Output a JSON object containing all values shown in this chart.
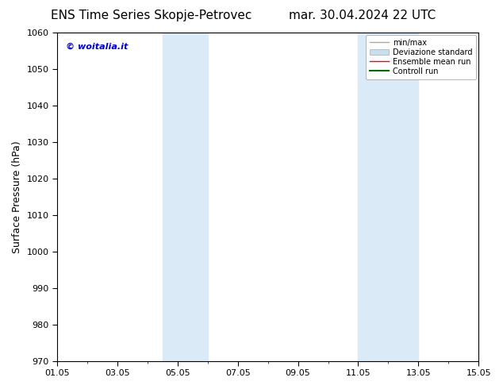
{
  "title_left": "ENS Time Series Skopje-Petrovec",
  "title_right": "mar. 30.04.2024 22 UTC",
  "ylabel": "Surface Pressure (hPa)",
  "ylim": [
    970,
    1060
  ],
  "yticks": [
    970,
    980,
    990,
    1000,
    1010,
    1020,
    1030,
    1040,
    1050,
    1060
  ],
  "xlim_start": 0,
  "xlim_end": 14,
  "xtick_labels": [
    "01.05",
    "03.05",
    "05.05",
    "07.05",
    "09.05",
    "11.05",
    "13.05",
    "15.05"
  ],
  "xtick_positions": [
    0,
    2,
    4,
    6,
    8,
    10,
    12,
    14
  ],
  "shaded_regions": [
    {
      "xmin": 3.5,
      "xmax": 5.0
    },
    {
      "xmin": 10.0,
      "xmax": 12.0
    }
  ],
  "shaded_color": "#daeaf7",
  "background_color": "#ffffff",
  "watermark_text": "© woitalia.it",
  "watermark_color": "#0000cc",
  "legend_items": [
    {
      "label": "min/max",
      "color": "#aaaaaa",
      "lw": 1.0
    },
    {
      "label": "Deviazione standard",
      "color": "#c8dff0",
      "lw": 6
    },
    {
      "label": "Ensemble mean run",
      "color": "#ff0000",
      "lw": 1.0
    },
    {
      "label": "Controll run",
      "color": "#006600",
      "lw": 1.5
    }
  ],
  "title_fontsize": 11,
  "axis_fontsize": 9,
  "tick_fontsize": 8,
  "legend_fontsize": 7,
  "watermark_fontsize": 8
}
